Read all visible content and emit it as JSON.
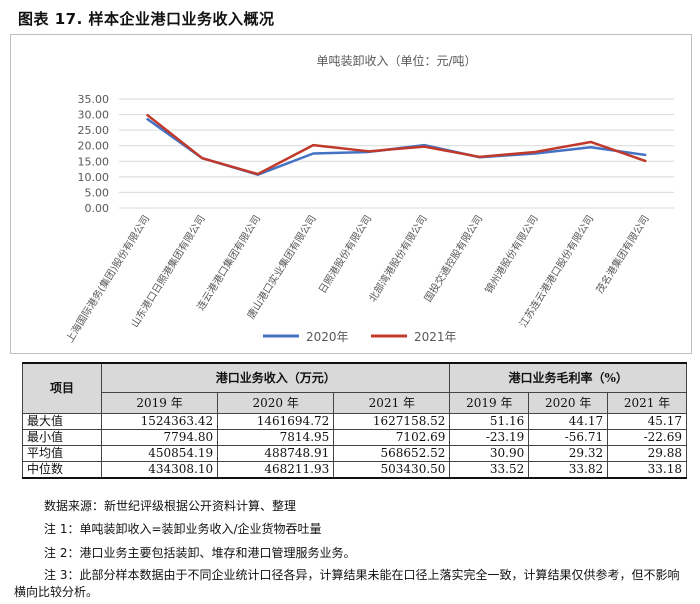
{
  "figure_title": "图表 17.    样本企业港口业务收入概况",
  "chart_data": {
    "type": "line",
    "title": "单吨装卸收入（单位：元/吨）",
    "categories": [
      "上海国际港务(集团)股份有限公司",
      "山东港口日照港集团有限公司",
      "连云港港口集团有限公司",
      "唐山港口实业集团有限公司",
      "日照港股份有限公司",
      "北部湾港股份有限公司",
      "国投交通控股有限公司",
      "锦州港股份有限公司",
      "江苏连云港港口股份有限公司",
      "茂名港集团有限公司"
    ],
    "series": [
      {
        "name": "2020年",
        "color": "#4472c4",
        "values": [
          28.7,
          16.0,
          10.7,
          17.5,
          18.0,
          20.2,
          16.3,
          17.5,
          19.5,
          17.0
        ]
      },
      {
        "name": "2021年",
        "color": "#c0392b",
        "values": [
          30.0,
          16.0,
          10.9,
          20.2,
          18.2,
          19.7,
          16.4,
          18.0,
          21.2,
          15.0
        ]
      }
    ],
    "y_ticks": [
      "0.00",
      "5.00",
      "10.00",
      "15.00",
      "20.00",
      "25.00",
      "30.00",
      "35.00"
    ],
    "ylim": [
      0,
      35
    ],
    "grid": true,
    "legend_position": "bottom"
  },
  "table": {
    "header_item": "项目",
    "group_headers": [
      "港口业务收入（万元）",
      "港口业务毛利率（%）"
    ],
    "years": [
      "2019 年",
      "2020 年",
      "2021 年",
      "2019 年",
      "2020 年",
      "2021 年"
    ],
    "rows": [
      {
        "label": "最大值",
        "cells": [
          "1524363.42",
          "1461694.72",
          "1627158.52",
          "51.16",
          "44.17",
          "45.17"
        ]
      },
      {
        "label": "最小值",
        "cells": [
          "7794.80",
          "7814.95",
          "7102.69",
          "-23.19",
          "-56.71",
          "-22.69"
        ]
      },
      {
        "label": "平均值",
        "cells": [
          "450854.19",
          "488748.91",
          "568652.52",
          "30.90",
          "29.32",
          "29.88"
        ]
      },
      {
        "label": "中位数",
        "cells": [
          "434308.10",
          "468211.93",
          "503430.50",
          "33.52",
          "33.82",
          "33.18"
        ]
      }
    ]
  },
  "notes": {
    "source": "数据来源：新世纪评级根据公开资料计算、整理",
    "note1": "注 1：单吨装卸收入=装卸业务收入/企业货物吞吐量",
    "note2": "注 2：港口业务主要包括装卸、堆存和港口管理服务业务。",
    "note3": "注 3：此部分样本数据由于不同企业统计口径各异，计算结果未能在口径上落实完全一致，计算结果仅供参考，但不影响横向比较分析。"
  }
}
